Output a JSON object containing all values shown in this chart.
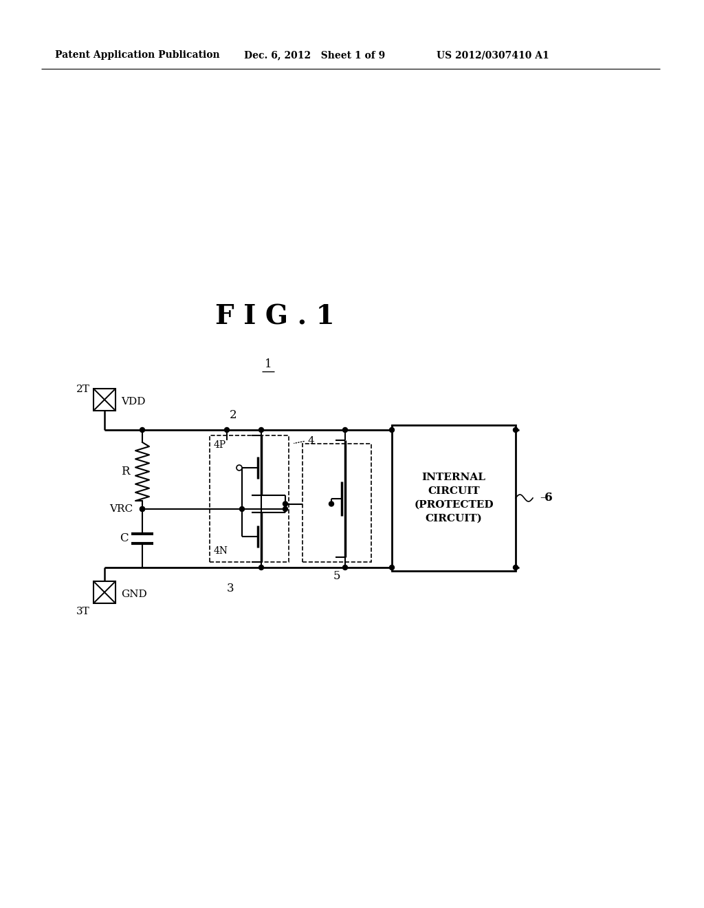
{
  "bg_color": "#ffffff",
  "header_left": "Patent Application Publication",
  "header_mid": "Dec. 6, 2012   Sheet 1 of 9",
  "header_right": "US 2012/0307410 A1",
  "fig_title": "FIG . 1",
  "circuit_label": "1"
}
